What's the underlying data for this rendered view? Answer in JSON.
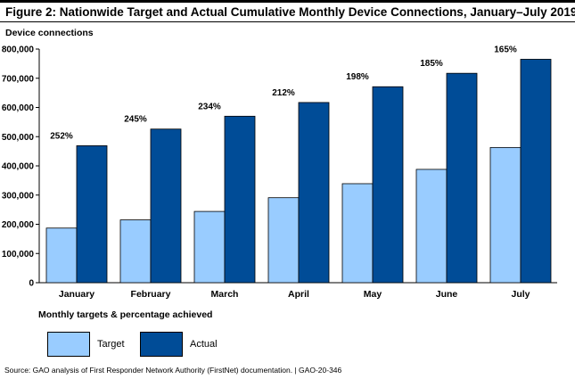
{
  "figure": {
    "title": "Figure 2: Nationwide Target and Actual Cumulative Monthly Device Connections, January–July 2019",
    "source": "Source: GAO analysis of First Responder Network Authority (FirstNet) documentation.  |  GAO-20-346"
  },
  "chart_data": {
    "type": "bar",
    "title": "Figure 2: Nationwide Target and Actual Cumulative Monthly Device Connections, January–July 2019",
    "ylabel": "Device connections",
    "xlabel": "Monthly targets & percentage achieved",
    "categories": [
      "January",
      "February",
      "March",
      "April",
      "May",
      "June",
      "July"
    ],
    "series": [
      {
        "name": "Target",
        "color": "#99ccff",
        "values": [
          187000,
          215000,
          244000,
          291000,
          339000,
          388000,
          463000
        ]
      },
      {
        "name": "Actual",
        "color": "#004c97",
        "values": [
          469000,
          526000,
          570000,
          617000,
          671000,
          717000,
          765000
        ]
      }
    ],
    "data_labels": [
      "252%",
      "245%",
      "234%",
      "212%",
      "198%",
      "185%",
      "165%"
    ],
    "ylim": [
      0,
      800000
    ],
    "yticks": [
      0,
      100000,
      200000,
      300000,
      400000,
      500000,
      600000,
      700000,
      800000
    ],
    "ytick_labels": [
      "0",
      "100,000",
      "200,000",
      "300,000",
      "400,000",
      "500,000",
      "600,000",
      "700,000",
      "800,000"
    ],
    "grid": false,
    "legend_position": "bottom-left"
  }
}
